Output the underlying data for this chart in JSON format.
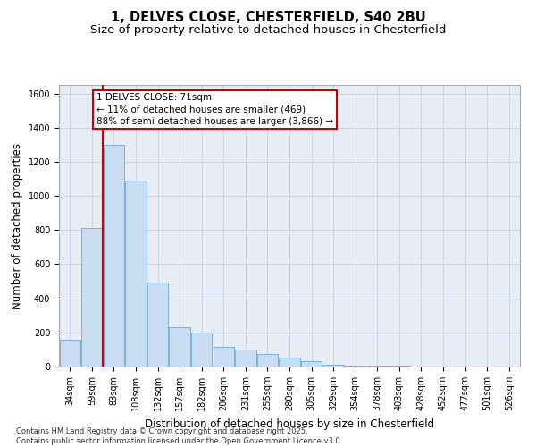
{
  "title_line1": "1, DELVES CLOSE, CHESTERFIELD, S40 2BU",
  "title_line2": "Size of property relative to detached houses in Chesterfield",
  "xlabel": "Distribution of detached houses by size in Chesterfield",
  "ylabel": "Number of detached properties",
  "categories": [
    "34sqm",
    "59sqm",
    "83sqm",
    "108sqm",
    "132sqm",
    "157sqm",
    "182sqm",
    "206sqm",
    "231sqm",
    "255sqm",
    "280sqm",
    "305sqm",
    "329sqm",
    "354sqm",
    "378sqm",
    "403sqm",
    "428sqm",
    "452sqm",
    "477sqm",
    "501sqm",
    "526sqm"
  ],
  "values": [
    155,
    810,
    1300,
    1090,
    490,
    230,
    200,
    115,
    100,
    75,
    50,
    30,
    10,
    5,
    5,
    3,
    2,
    2,
    2,
    2,
    2
  ],
  "bar_color": "#c9ddf2",
  "bar_edge_color": "#6aaad4",
  "grid_color": "#c8d4e8",
  "bg_color": "#e8edf5",
  "vline_x": 1.5,
  "vline_color": "#cc0000",
  "annotation_text": "1 DELVES CLOSE: 71sqm\n← 11% of detached houses are smaller (469)\n88% of semi-detached houses are larger (3,866) →",
  "annotation_box_color": "#cc0000",
  "ylim": [
    0,
    1650
  ],
  "yticks": [
    0,
    200,
    400,
    600,
    800,
    1000,
    1200,
    1400,
    1600
  ],
  "footer": "Contains HM Land Registry data © Crown copyright and database right 2025.\nContains public sector information licensed under the Open Government Licence v3.0.",
  "title_fontsize": 10.5,
  "subtitle_fontsize": 9.5,
  "axis_label_fontsize": 8.5,
  "tick_fontsize": 7,
  "ann_fontsize": 7.5
}
